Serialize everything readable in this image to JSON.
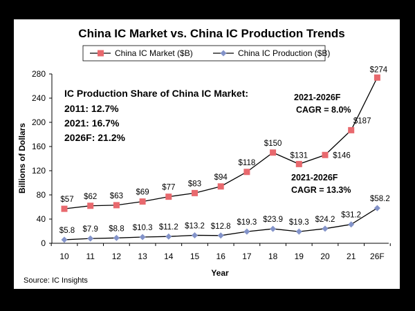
{
  "chart_data": {
    "type": "line",
    "title": "China IC Market vs. China IC Production Trends",
    "xlabel": "Year",
    "ylabel": "Billions of Dollars",
    "ylim": [
      0,
      280
    ],
    "yticks": [
      0,
      40,
      80,
      120,
      160,
      200,
      240,
      280
    ],
    "categories": [
      "10",
      "11",
      "12",
      "13",
      "14",
      "15",
      "16",
      "17",
      "18",
      "19",
      "20",
      "21",
      "26F"
    ],
    "series": [
      {
        "name": "China IC Market ($B)",
        "color": "#e8696e",
        "marker": "square",
        "values": [
          57,
          62,
          63,
          69,
          77,
          83,
          94,
          118,
          150,
          131,
          146,
          187,
          274
        ],
        "labels": [
          "$57",
          "$62",
          "$63",
          "$69",
          "$77",
          "$83",
          "$94",
          "$118",
          "$150",
          "$131",
          "$146",
          "$187",
          "$274"
        ]
      },
      {
        "name": "China IC Production ($B)",
        "color": "#8393c9",
        "marker": "diamond",
        "values": [
          5.8,
          7.9,
          8.8,
          10.3,
          11.2,
          13.2,
          12.8,
          19.3,
          23.9,
          19.3,
          24.2,
          31.2,
          58.2
        ],
        "labels": [
          "$5.8",
          "$7.9",
          "$8.8",
          "$10.3",
          "$11.2",
          "$13.2",
          "$12.8",
          "$19.3",
          "$23.9",
          "$19.3",
          "$24.2",
          "$31.2",
          "$58.2"
        ]
      }
    ],
    "legend_position": "top-center",
    "grid": false,
    "annotations": {
      "share_heading": "IC Production Share of China IC Market:",
      "share_2011": "2011: 12.7%",
      "share_2021": "2021: 16.7%",
      "share_2026": "2026F: 21.2%",
      "market_cagr_period": "2021-2026F",
      "market_cagr": "CAGR = 8.0%",
      "production_cagr_period": "2021-2026F",
      "production_cagr": "CAGR = 13.3%"
    },
    "source": "Source: IC Insights"
  }
}
